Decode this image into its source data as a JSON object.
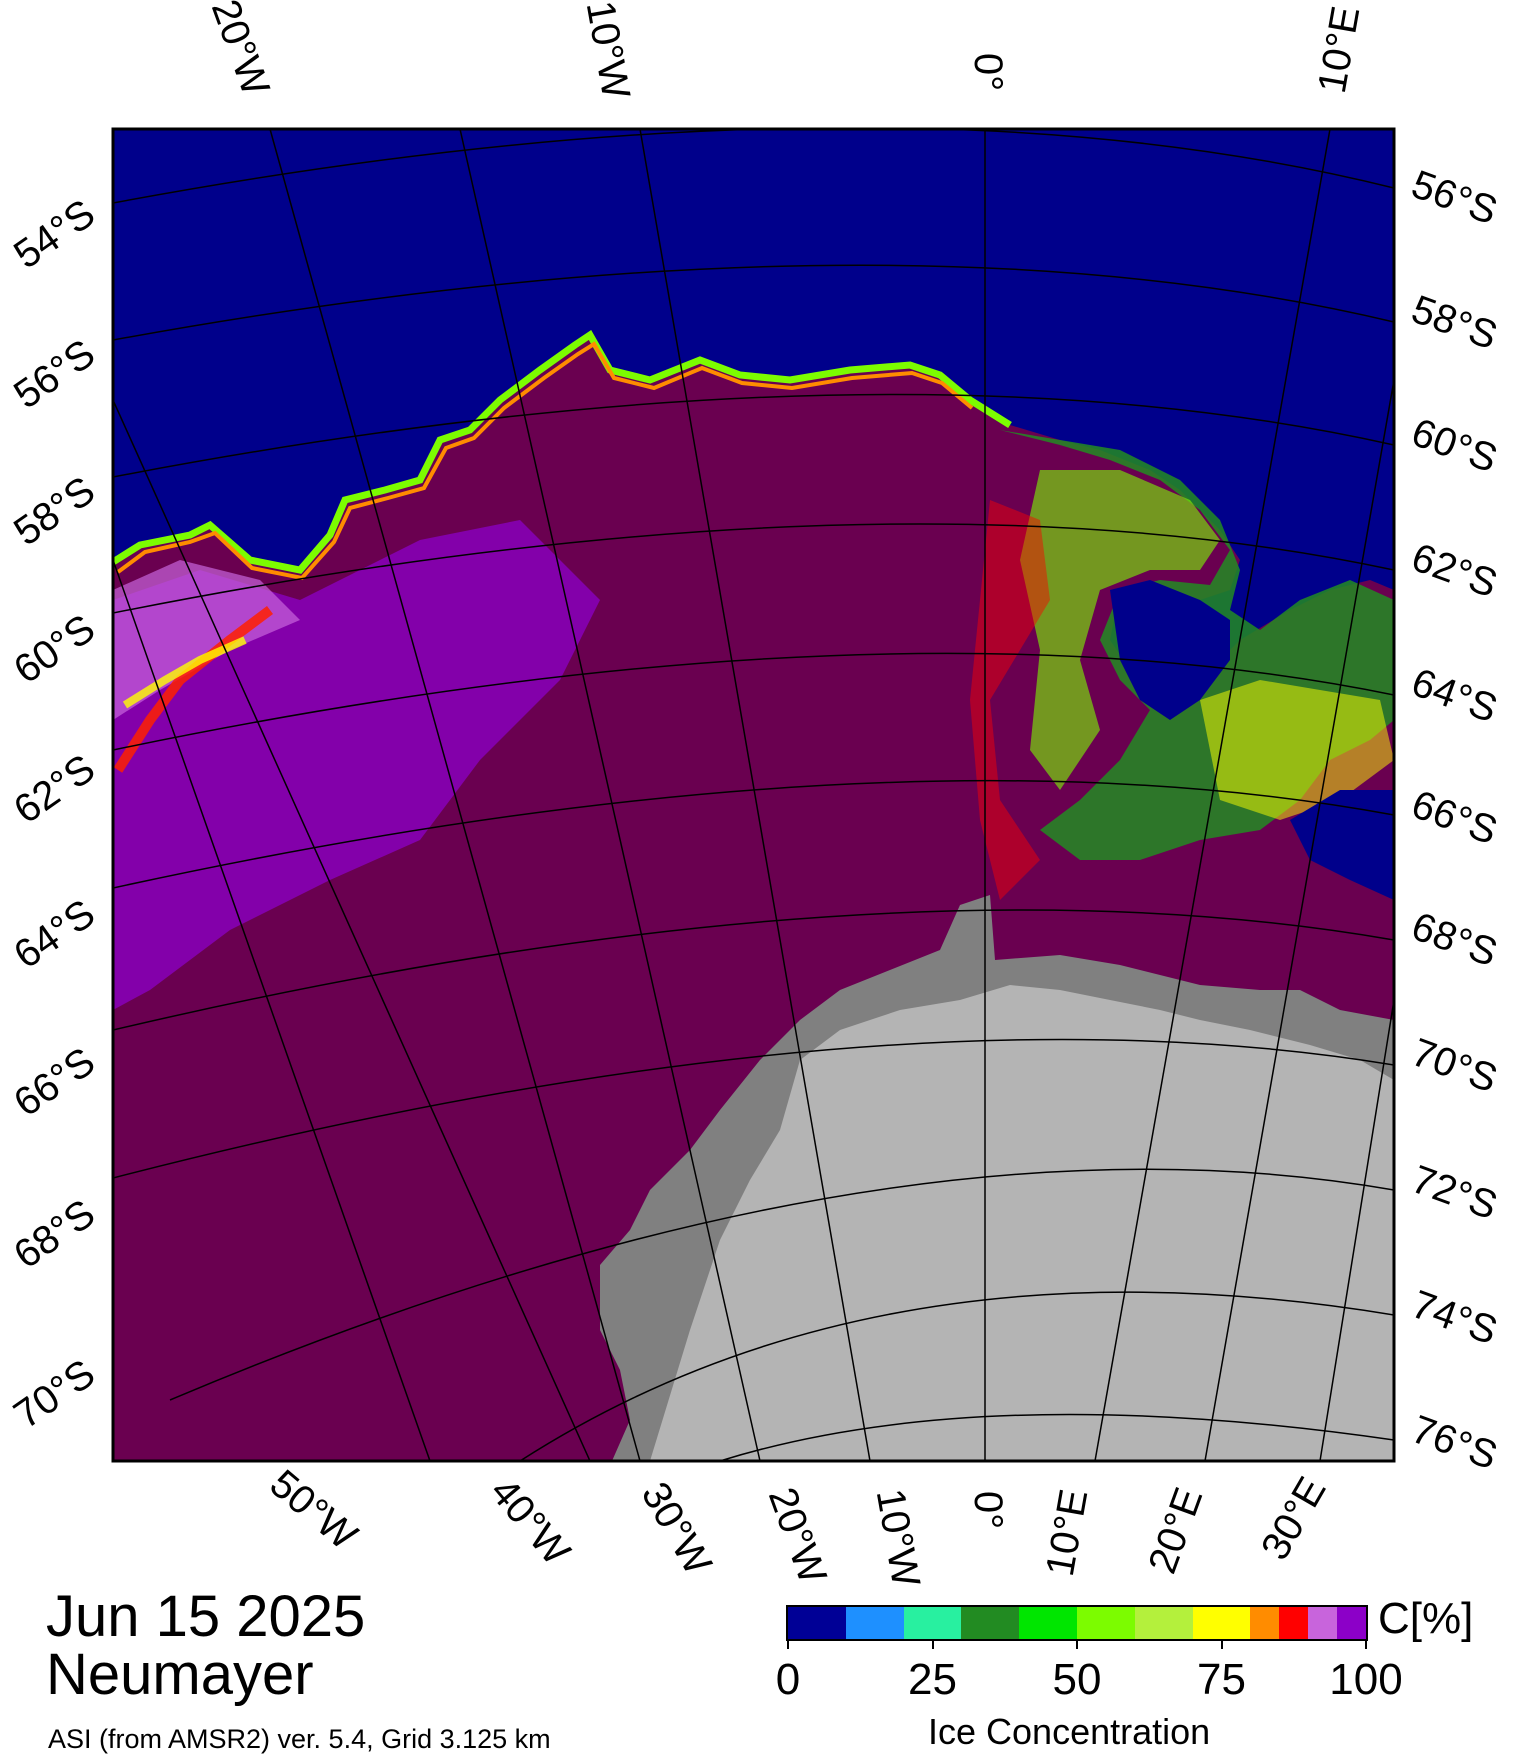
{
  "map": {
    "lat_labels_left": [
      "54°S",
      "56°S",
      "58°S",
      "60°S",
      "62°S",
      "64°S",
      "66°S",
      "68°S",
      "70°S"
    ],
    "lat_labels_right": [
      "56°S",
      "58°S",
      "60°S",
      "62°S",
      "64°S",
      "66°S",
      "68°S",
      "70°S",
      "72°S",
      "74°S",
      "76°S"
    ],
    "lon_labels_top": [
      "20°W",
      "10°W",
      "0°",
      "10°E"
    ],
    "lon_labels_bottom": [
      "50°W",
      "40°W",
      "30°W",
      "20°W",
      "10°W",
      "0°",
      "10°E",
      "20°E",
      "30°E"
    ],
    "colors": {
      "ocean": "#00008b",
      "full_ice": "#6a0050",
      "high_ice": "#8000c8",
      "land_ice": "#b4b4b4",
      "shelf_ice": "#808080",
      "graticule": "#000000"
    }
  },
  "title": {
    "date": "Jun 15 2025",
    "station": "Neumayer",
    "source": "ASI (from AMSR2) ver. 5.4,  Grid 3.125 km"
  },
  "colorbar": {
    "unit": "C[%]",
    "title": "Ice Concentration",
    "tick_labels": [
      "0",
      "25",
      "50",
      "75",
      "100"
    ],
    "tick_values": [
      0,
      25,
      50,
      75,
      100
    ],
    "range": [
      0,
      100
    ],
    "segments": [
      {
        "from": 0,
        "to": 10,
        "color": "#000096"
      },
      {
        "from": 10,
        "to": 20,
        "color": "#1e90ff"
      },
      {
        "from": 20,
        "to": 30,
        "color": "#28f0a0"
      },
      {
        "from": 30,
        "to": 40,
        "color": "#228b22"
      },
      {
        "from": 40,
        "to": 50,
        "color": "#00e600"
      },
      {
        "from": 50,
        "to": 60,
        "color": "#7cfc00"
      },
      {
        "from": 60,
        "to": 70,
        "color": "#b4f03c"
      },
      {
        "from": 70,
        "to": 80,
        "color": "#ffff00"
      },
      {
        "from": 80,
        "to": 85,
        "color": "#ff8c00"
      },
      {
        "from": 85,
        "to": 90,
        "color": "#ff0000"
      },
      {
        "from": 90,
        "to": 95,
        "color": "#c864dc"
      },
      {
        "from": 95,
        "to": 100,
        "color": "#8c00c8"
      }
    ]
  }
}
